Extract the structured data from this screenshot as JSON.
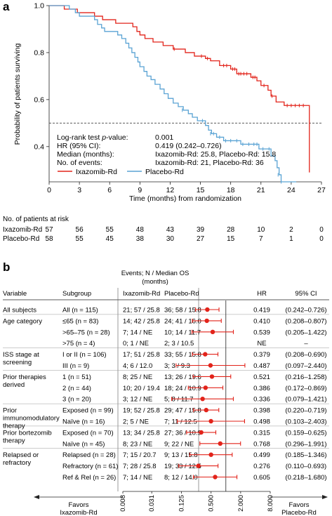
{
  "panel_a": {
    "letter": "a",
    "ylabel": "Probability of patients surviving",
    "xlabel": "Time (months) from randomization",
    "yticks": [
      "0.4",
      "0.6",
      "0.8",
      "1.0"
    ],
    "xticks": [
      "0",
      "3",
      "6",
      "9",
      "12",
      "15",
      "18",
      "21",
      "24",
      "27"
    ],
    "stats": [
      {
        "label": "Log-rank test p-value:",
        "value": "0.001"
      },
      {
        "label": "HR (95% CI):",
        "value": "0.419 (0.242–0.726)"
      },
      {
        "label": "Median (months):",
        "value": "Ixazomib-Rd: 25.8, Placebo-Rd: 15.8"
      },
      {
        "label": "No. of events:",
        "value": "Ixazomib-Rd: 21, Placebo-Rd: 36"
      }
    ],
    "legend": [
      {
        "label": "Ixazomib-Rd",
        "color": "#e2231a"
      },
      {
        "label": "Placebo-Rd",
        "color": "#5aa3d4"
      }
    ],
    "at_risk": {
      "title": "No. of patients at risk",
      "rows": [
        {
          "label": "Ixazomib-Rd",
          "values": [
            "57",
            "56",
            "55",
            "48",
            "43",
            "39",
            "28",
            "10",
            "2",
            "0"
          ]
        },
        {
          "label": "Placebo-Rd",
          "values": [
            "58",
            "55",
            "45",
            "38",
            "30",
            "27",
            "15",
            "7",
            "1",
            "0"
          ]
        }
      ]
    }
  },
  "panel_b": {
    "letter": "b",
    "header": {
      "events": "Events; N / Median OS",
      "months": "(months)",
      "variable": "Variable",
      "subgroup": "Subgroup",
      "arm1": "Ixazomib-Rd",
      "arm2": "Placebo-Rd",
      "hr": "HR",
      "ci": "95% CI"
    },
    "xticks": [
      "0.008",
      "0.031",
      "0.125",
      "0.500",
      "2.000",
      "8.000"
    ],
    "favors_left": [
      "Favors",
      "Ixazomib-Rd"
    ],
    "favors_right": [
      "Favors",
      "Placebo-Rd"
    ],
    "rows": [
      {
        "variable": [
          "All subjects"
        ],
        "subgroup": "All (n = 115)",
        "ixa": "21; 57 / 25.8",
        "pla": "36; 58 / 15.8",
        "hr": "0.419",
        "ci": "(0.242–0.726)"
      },
      {
        "variable": [
          "Age category"
        ],
        "subgroup": "≤65 (n = 83)",
        "ixa": "14; 42 / 25.8",
        "pla": "24; 41 / 16.0",
        "hr": "0.410",
        "ci": "(0.208–0.807)"
      },
      {
        "variable": [],
        "subgroup": ">65–75 (n = 28)",
        "ixa": "7; 14 / NE",
        "pla": "10; 14 / 11.7",
        "hr": "0.539",
        "ci": "(0.205–1.422)"
      },
      {
        "variable": [],
        "subgroup": ">75 (n = 4)",
        "ixa": "0; 1 / NE",
        "pla": "2; 3 / 10.5",
        "hr": "NE",
        "ci": "–"
      },
      {
        "variable": [
          "ISS stage at",
          "screening"
        ],
        "subgroup": "I or II (n = 106)",
        "ixa": "17; 51 / 25.8",
        "pla": "33; 55 / 15.8",
        "hr": "0.379",
        "ci": "(0.208–0.690)"
      },
      {
        "variable": [],
        "subgroup": "III (n = 9)",
        "ixa": "4; 6 / 12.0",
        "pla": "3; 3 / 9.3",
        "hr": "0.487",
        "ci": "(0.097–2.440)"
      },
      {
        "variable": [
          "Prior therapies",
          "derived"
        ],
        "subgroup": "1 (n = 51)",
        "ixa": "8; 25 / NE",
        "pla": "13; 26 / 19.6",
        "hr": "0.521",
        "ci": "(0.216–1.258)"
      },
      {
        "variable": [],
        "subgroup": "2 (n = 44)",
        "ixa": "10; 20 / 19.4",
        "pla": "18; 24 / 10.9",
        "hr": "0.386",
        "ci": "(0.172–0.869)"
      },
      {
        "variable": [],
        "subgroup": "3 (n = 20)",
        "ixa": "3; 12 / NE",
        "pla": "5; 8 / 11.7",
        "hr": "0.336",
        "ci": "(0.079–1.421)"
      },
      {
        "variable": [
          "Prior",
          "immunomodulatory",
          "therapy"
        ],
        "subgroup": "Exposed (n = 99)",
        "ixa": "19; 52 / 25.8",
        "pla": "29; 47 / 15.8",
        "hr": "0.398",
        "ci": "(0.220–0.719)"
      },
      {
        "variable": [],
        "subgroup": "Naïve (n = 16)",
        "ixa": "2; 5 / NE",
        "pla": "7; 11 / 12.5",
        "hr": "0.498",
        "ci": "(0.103–2.403)"
      },
      {
        "variable": [
          "Prior bortezomib",
          "therapy"
        ],
        "subgroup": "Exposed (n = 70)",
        "ixa": "13; 34 / 25.8",
        "pla": "27; 36 / 10.9",
        "hr": "0.315",
        "ci": "(0.159–0.625)"
      },
      {
        "variable": [],
        "subgroup": "Naïve (n = 45)",
        "ixa": "8; 23 / NE",
        "pla": "9; 22 / NE",
        "hr": "0.768",
        "ci": "(0.296–1.991)"
      },
      {
        "variable": [
          "Relapsed or",
          "refractory"
        ],
        "subgroup": "Relapsed (n = 28)",
        "ixa": "7; 15 / 20.7",
        "pla": "9; 13 / 15.8",
        "hr": "0.499",
        "ci": "(0.185–1.346)"
      },
      {
        "variable": [],
        "subgroup": "Refractory (n = 61)",
        "ixa": "7; 28 / 25.8",
        "pla": "19; 33 / 12.5",
        "hr": "0.276",
        "ci": "(0.110–0.693)"
      },
      {
        "variable": [],
        "subgroup": "Ref & Rel (n = 26)",
        "ixa": "7; 14 / NE",
        "pla": "8; 12 / 14.0",
        "hr": "0.605",
        "ci": "(0.218–1.680)"
      }
    ]
  },
  "chart_data": [
    {
      "type": "line",
      "xlabel": "Time (months) from randomization",
      "ylabel": "Probability of patients surviving",
      "xlim": [
        0,
        27
      ],
      "ylim": [
        0.25,
        1.0
      ],
      "reference_line": 0.5,
      "series": [
        {
          "name": "Ixazomib-Rd",
          "color": "#e2231a",
          "steps": [
            [
              0,
              1.0
            ],
            [
              1.5,
              0.985
            ],
            [
              2.8,
              0.97
            ],
            [
              4.5,
              0.955
            ],
            [
              5.3,
              0.94
            ],
            [
              6.6,
              0.925
            ],
            [
              8.3,
              0.91
            ],
            [
              8.7,
              0.89
            ],
            [
              9.0,
              0.875
            ],
            [
              9.5,
              0.86
            ],
            [
              10.3,
              0.845
            ],
            [
              11.3,
              0.83
            ],
            [
              12.3,
              0.815
            ],
            [
              13.5,
              0.8
            ],
            [
              14.4,
              0.785
            ],
            [
              15.5,
              0.775
            ],
            [
              16.0,
              0.765
            ],
            [
              16.9,
              0.745
            ],
            [
              18.0,
              0.73
            ],
            [
              18.6,
              0.71
            ],
            [
              20.0,
              0.695
            ],
            [
              20.6,
              0.68
            ],
            [
              21.0,
              0.66
            ],
            [
              21.7,
              0.64
            ],
            [
              22.0,
              0.615
            ],
            [
              22.5,
              0.59
            ],
            [
              23.3,
              0.575
            ],
            [
              25.8,
              0.29
            ]
          ],
          "end": 25.8,
          "censored": [
            [
              12.4,
              0.815
            ],
            [
              15.1,
              0.785
            ],
            [
              15.7,
              0.775
            ],
            [
              17.3,
              0.745
            ],
            [
              17.6,
              0.745
            ],
            [
              18.2,
              0.73
            ],
            [
              18.4,
              0.73
            ],
            [
              18.8,
              0.71
            ],
            [
              19.0,
              0.71
            ],
            [
              19.3,
              0.71
            ],
            [
              19.6,
              0.71
            ],
            [
              20.2,
              0.695
            ],
            [
              20.4,
              0.695
            ],
            [
              21.3,
              0.66
            ],
            [
              22.1,
              0.615
            ],
            [
              23.6,
              0.575
            ],
            [
              24.0,
              0.575
            ],
            [
              24.4,
              0.575
            ],
            [
              24.8,
              0.575
            ],
            [
              25.2,
              0.575
            ]
          ]
        },
        {
          "name": "Placebo-Rd",
          "color": "#5aa3d4",
          "steps": [
            [
              0,
              1.0
            ],
            [
              2.0,
              0.985
            ],
            [
              2.6,
              0.97
            ],
            [
              3.0,
              0.955
            ],
            [
              4.5,
              0.94
            ],
            [
              4.8,
              0.92
            ],
            [
              5.2,
              0.905
            ],
            [
              5.5,
              0.89
            ],
            [
              6.8,
              0.875
            ],
            [
              7.2,
              0.86
            ],
            [
              7.6,
              0.84
            ],
            [
              7.9,
              0.82
            ],
            [
              8.2,
              0.8
            ],
            [
              8.5,
              0.78
            ],
            [
              8.8,
              0.76
            ],
            [
              9.0,
              0.74
            ],
            [
              9.4,
              0.72
            ],
            [
              9.7,
              0.7
            ],
            [
              10.1,
              0.685
            ],
            [
              10.5,
              0.665
            ],
            [
              11.0,
              0.645
            ],
            [
              11.4,
              0.625
            ],
            [
              11.8,
              0.605
            ],
            [
              12.3,
              0.585
            ],
            [
              12.8,
              0.57
            ],
            [
              13.3,
              0.555
            ],
            [
              13.8,
              0.54
            ],
            [
              14.2,
              0.525
            ],
            [
              14.7,
              0.51
            ],
            [
              15.3,
              0.51
            ],
            [
              15.5,
              0.49
            ],
            [
              15.8,
              0.47
            ],
            [
              16.1,
              0.455
            ],
            [
              16.6,
              0.44
            ],
            [
              17.3,
              0.425
            ],
            [
              19.0,
              0.41
            ],
            [
              20.8,
              0.39
            ],
            [
              22.0,
              0.36
            ],
            [
              22.4,
              0.34
            ],
            [
              22.6,
              0.31
            ],
            [
              22.8,
              0.28
            ],
            [
              23.0,
              0.25
            ]
          ],
          "end": 24.5,
          "censored": [
            [
              13.2,
              0.555
            ],
            [
              15.2,
              0.51
            ],
            [
              16.0,
              0.455
            ],
            [
              16.3,
              0.455
            ],
            [
              16.9,
              0.44
            ],
            [
              17.5,
              0.425
            ],
            [
              18.0,
              0.425
            ],
            [
              18.6,
              0.425
            ],
            [
              19.2,
              0.41
            ],
            [
              19.8,
              0.41
            ],
            [
              20.3,
              0.41
            ],
            [
              20.6,
              0.41
            ],
            [
              21.2,
              0.39
            ],
            [
              21.8,
              0.39
            ],
            [
              22.7,
              0.28
            ],
            [
              23.0,
              0.25
            ]
          ]
        }
      ]
    },
    {
      "type": "scatter",
      "subtype": "forest",
      "x_scale": "log2",
      "xlim": [
        0.008,
        8.0
      ],
      "reference_line": 1.0,
      "categories": [
        "All (n = 115)",
        "≤65 (n = 83)",
        ">65–75 (n = 28)",
        ">75 (n = 4)",
        "I or II (n = 106)",
        "III (n = 9)",
        "1 (n = 51)",
        "2 (n = 44)",
        "3 (n = 20)",
        "Exposed (n = 99)",
        "Naïve (n = 16)",
        "Exposed (n = 70)",
        "Naïve (n = 45)",
        "Relapsed (n = 28)",
        "Refractory (n = 61)",
        "Ref & Rel (n = 26)"
      ],
      "hr": [
        0.419,
        0.41,
        0.539,
        null,
        0.379,
        0.487,
        0.521,
        0.386,
        0.336,
        0.398,
        0.498,
        0.315,
        0.768,
        0.499,
        0.276,
        0.605
      ],
      "lower": [
        0.242,
        0.208,
        0.205,
        null,
        0.208,
        0.097,
        0.216,
        0.172,
        0.079,
        0.22,
        0.103,
        0.159,
        0.296,
        0.185,
        0.11,
        0.218
      ],
      "upper": [
        0.726,
        0.807,
        1.422,
        null,
        0.69,
        2.44,
        1.258,
        0.869,
        1.421,
        0.719,
        2.403,
        0.625,
        1.991,
        1.346,
        0.693,
        1.68
      ],
      "color": "#e2231a"
    }
  ]
}
